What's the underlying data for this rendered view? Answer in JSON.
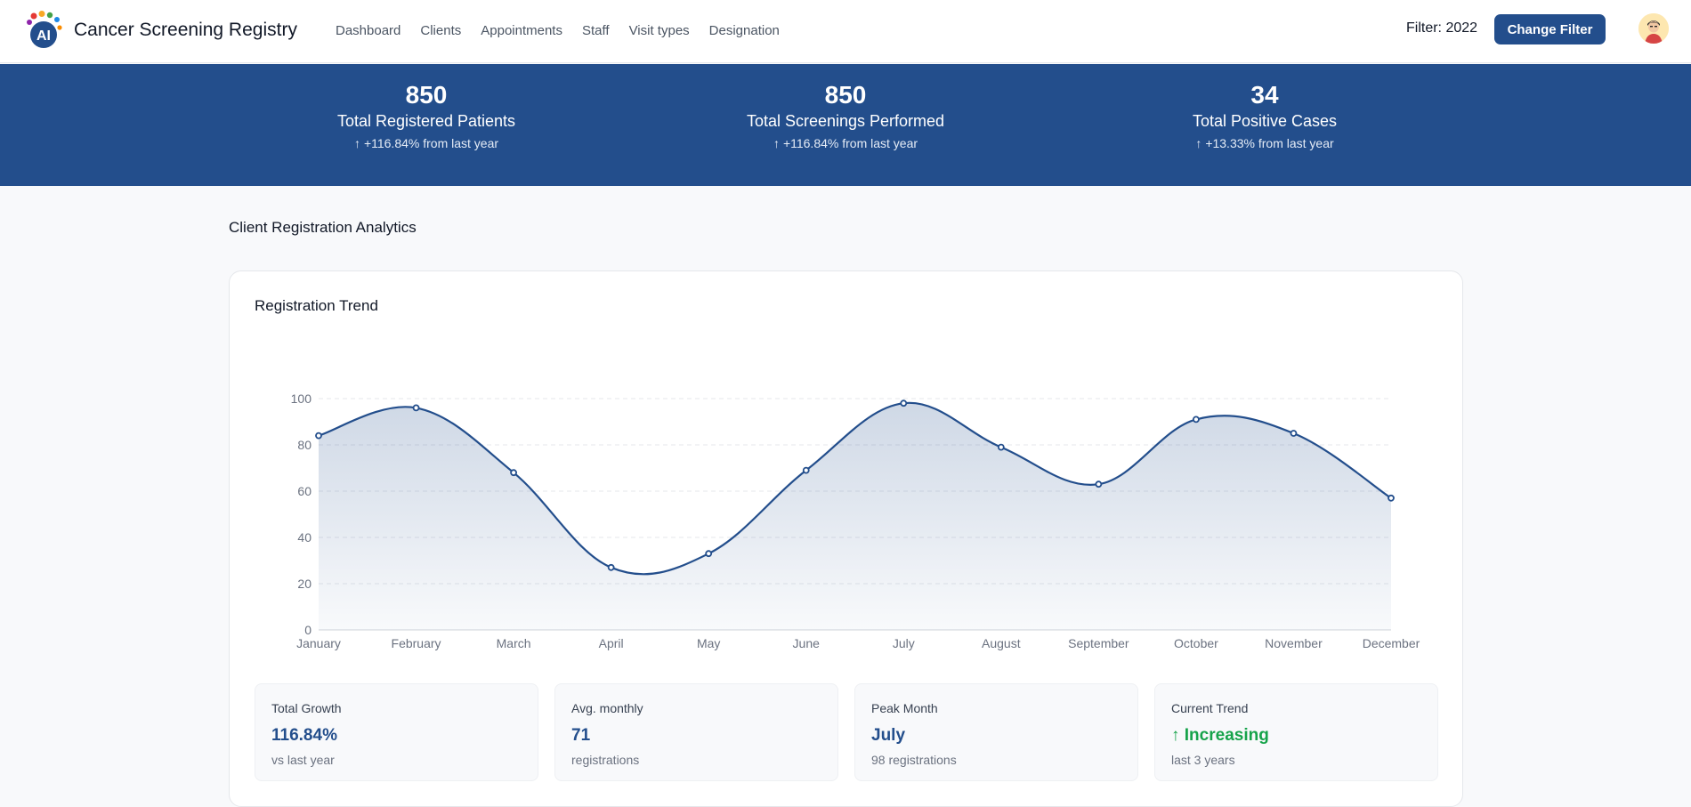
{
  "app": {
    "title": "Cancer Screening Registry",
    "logo_text": "AI"
  },
  "nav": [
    "Dashboard",
    "Clients",
    "Appointments",
    "Staff",
    "Visit types",
    "Designation"
  ],
  "header": {
    "filter_label": "Filter: 2022",
    "change_filter_label": "Change Filter"
  },
  "stats": [
    {
      "value": "850",
      "label": "Total Registered Patients",
      "change": "+116.84% from last year"
    },
    {
      "value": "850",
      "label": "Total Screenings Performed",
      "change": "+116.84% from last year"
    },
    {
      "value": "34",
      "label": "Total Positive Cases",
      "change": "+13.33% from last year"
    }
  ],
  "section": {
    "title": "Client Registration Analytics"
  },
  "card": {
    "title": "Registration Trend"
  },
  "chart_data": {
    "type": "area",
    "title": "Registration Trend",
    "categories": [
      "January",
      "February",
      "March",
      "April",
      "May",
      "June",
      "July",
      "August",
      "September",
      "October",
      "November",
      "December"
    ],
    "values": [
      84,
      96,
      68,
      27,
      33,
      69,
      98,
      79,
      63,
      91,
      85,
      57
    ],
    "yticks": [
      0,
      20,
      40,
      60,
      80,
      100
    ],
    "ylim": [
      0,
      100
    ],
    "grid": true,
    "colors": {
      "line": "#234e8c",
      "fill": "#234e8c"
    }
  },
  "metrics": [
    {
      "label": "Total Growth",
      "value": "116.84%",
      "sub": "vs last year"
    },
    {
      "label": "Avg. monthly",
      "value": "71",
      "sub": "registrations"
    },
    {
      "label": "Peak Month",
      "value": "July",
      "sub": "98 registrations"
    },
    {
      "label": "Current Trend",
      "value": "Increasing",
      "sub": "last 3 years"
    }
  ],
  "colors": {
    "brand": "#234e8c",
    "positive": "#16a34a"
  }
}
